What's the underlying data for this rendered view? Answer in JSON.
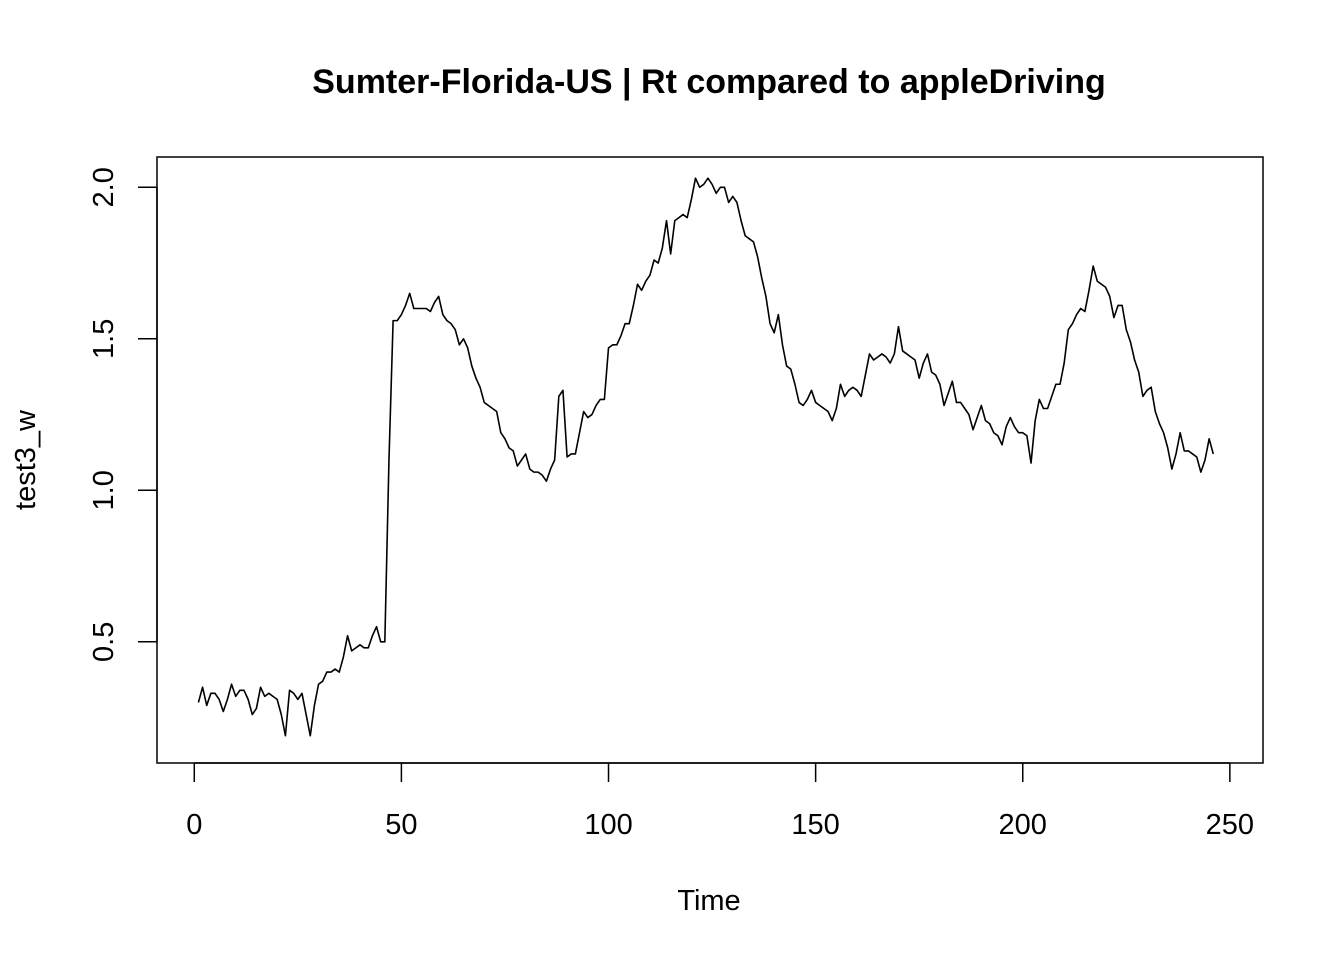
{
  "chart_data": {
    "type": "line",
    "title": "Sumter-Florida-US | Rt compared to appleDriving",
    "xlabel": "Time",
    "ylabel": "test3_w",
    "xlim": [
      -9,
      258
    ],
    "ylim": [
      0.1,
      2.1
    ],
    "x_ticks": [
      0,
      50,
      100,
      150,
      200,
      250
    ],
    "y_ticks": [
      0.5,
      1.0,
      1.5,
      2.0
    ],
    "x_tick_labels": [
      "0",
      "50",
      "100",
      "150",
      "200",
      "250"
    ],
    "y_tick_labels": [
      "0.5",
      "1.0",
      "1.5",
      "2.0"
    ],
    "grid": false,
    "line_color": "#000000",
    "series": [
      {
        "x_start": 1,
        "values": [
          0.3,
          0.35,
          0.29,
          0.33,
          0.33,
          0.31,
          0.27,
          0.31,
          0.36,
          0.32,
          0.34,
          0.34,
          0.31,
          0.26,
          0.28,
          0.35,
          0.32,
          0.33,
          0.32,
          0.31,
          0.26,
          0.19,
          0.34,
          0.33,
          0.31,
          0.33,
          0.26,
          0.19,
          0.29,
          0.36,
          0.37,
          0.4,
          0.4,
          0.41,
          0.4,
          0.45,
          0.52,
          0.47,
          0.48,
          0.49,
          0.48,
          0.48,
          0.52,
          0.55,
          0.5,
          0.5,
          1.1,
          1.56,
          1.56,
          1.58,
          1.61,
          1.65,
          1.6,
          1.6,
          1.6,
          1.6,
          1.59,
          1.62,
          1.64,
          1.58,
          1.56,
          1.55,
          1.53,
          1.48,
          1.5,
          1.47,
          1.41,
          1.37,
          1.34,
          1.29,
          1.28,
          1.27,
          1.26,
          1.19,
          1.17,
          1.14,
          1.13,
          1.08,
          1.1,
          1.12,
          1.07,
          1.06,
          1.06,
          1.05,
          1.03,
          1.07,
          1.1,
          1.31,
          1.33,
          1.11,
          1.12,
          1.12,
          1.19,
          1.26,
          1.24,
          1.25,
          1.28,
          1.3,
          1.3,
          1.47,
          1.48,
          1.48,
          1.51,
          1.55,
          1.55,
          1.61,
          1.68,
          1.66,
          1.69,
          1.71,
          1.76,
          1.75,
          1.8,
          1.89,
          1.78,
          1.89,
          1.9,
          1.91,
          1.9,
          1.96,
          2.03,
          2.0,
          2.01,
          2.03,
          2.01,
          1.98,
          2.0,
          2.0,
          1.95,
          1.97,
          1.95,
          1.89,
          1.84,
          1.83,
          1.82,
          1.77,
          1.7,
          1.64,
          1.55,
          1.52,
          1.58,
          1.48,
          1.41,
          1.4,
          1.35,
          1.29,
          1.28,
          1.3,
          1.33,
          1.29,
          1.28,
          1.27,
          1.26,
          1.23,
          1.27,
          1.35,
          1.31,
          1.33,
          1.34,
          1.33,
          1.31,
          1.38,
          1.45,
          1.43,
          1.44,
          1.45,
          1.44,
          1.42,
          1.45,
          1.54,
          1.46,
          1.45,
          1.44,
          1.43,
          1.37,
          1.42,
          1.45,
          1.39,
          1.38,
          1.35,
          1.28,
          1.32,
          1.36,
          1.29,
          1.29,
          1.27,
          1.25,
          1.2,
          1.24,
          1.28,
          1.23,
          1.22,
          1.19,
          1.18,
          1.15,
          1.21,
          1.24,
          1.21,
          1.19,
          1.19,
          1.18,
          1.09,
          1.23,
          1.3,
          1.27,
          1.27,
          1.31,
          1.35,
          1.35,
          1.42,
          1.53,
          1.55,
          1.58,
          1.6,
          1.59,
          1.66,
          1.74,
          1.69,
          1.68,
          1.67,
          1.64,
          1.57,
          1.61,
          1.61,
          1.53,
          1.49,
          1.43,
          1.39,
          1.31,
          1.33,
          1.34,
          1.26,
          1.22,
          1.19,
          1.14,
          1.07,
          1.12,
          1.19,
          1.13,
          1.13,
          1.12,
          1.11,
          1.06,
          1.1,
          1.17,
          1.12
        ]
      }
    ]
  }
}
